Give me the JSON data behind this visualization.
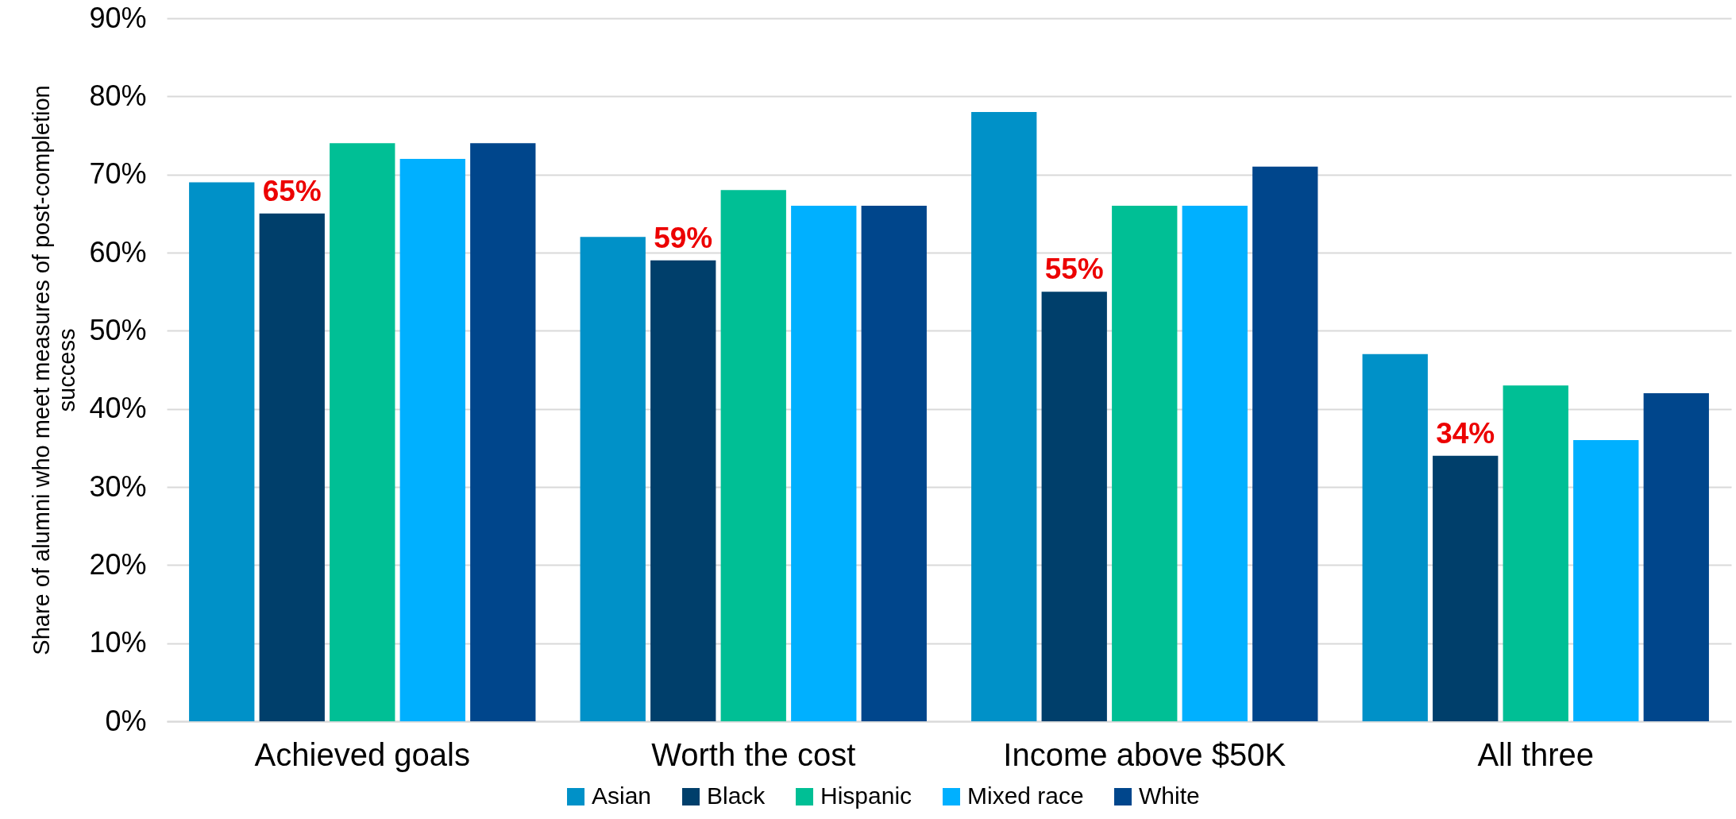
{
  "chart_data": {
    "type": "bar",
    "ylabel": "Share of alumni who meet measures of post-completion success",
    "categories": [
      "Achieved goals",
      "Worth the cost",
      "Income above $50K",
      "All three"
    ],
    "series": [
      {
        "name": "Asian",
        "color": "#0091c8",
        "values": [
          69,
          62,
          78,
          47
        ]
      },
      {
        "name": "Black",
        "color": "#003f6b",
        "values": [
          65,
          59,
          55,
          34
        ],
        "value_labels": [
          "65%",
          "59%",
          "55%",
          "34%"
        ]
      },
      {
        "name": "Hispanic",
        "color": "#00bf95",
        "values": [
          74,
          68,
          66,
          43
        ]
      },
      {
        "name": "Mixed race",
        "color": "#00b0ff",
        "values": [
          72,
          66,
          66,
          36
        ]
      },
      {
        "name": "White",
        "color": "#00468c",
        "values": [
          74,
          66,
          71,
          42
        ]
      }
    ],
    "ylim": [
      0,
      90
    ],
    "yticks": [
      {
        "value": 0,
        "label": "0%"
      },
      {
        "value": 10,
        "label": "10%"
      },
      {
        "value": 20,
        "label": "20%"
      },
      {
        "value": 30,
        "label": "30%"
      },
      {
        "value": 40,
        "label": "40%"
      },
      {
        "value": 50,
        "label": "50%"
      },
      {
        "value": 60,
        "label": "60%"
      },
      {
        "value": 70,
        "label": "70%"
      },
      {
        "value": 80,
        "label": "80%"
      },
      {
        "value": 90,
        "label": "90%"
      }
    ],
    "grid": "y",
    "legend": "bottom"
  }
}
